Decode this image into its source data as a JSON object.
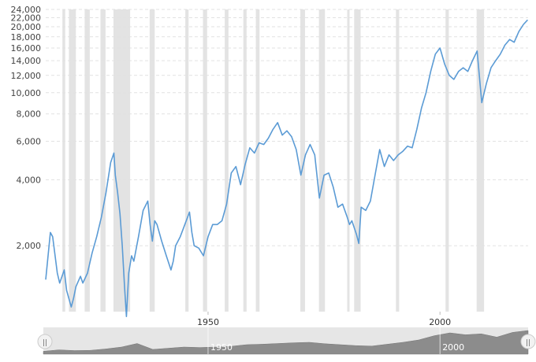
{
  "chart_data": {
    "type": "line",
    "y_scale": "log",
    "ylim": [
      1000,
      24000
    ],
    "xlim": [
      1915,
      2019
    ],
    "y_ticks": [
      {
        "value": 2000,
        "label": "2,000"
      },
      {
        "value": 4000,
        "label": "4,000"
      },
      {
        "value": 6000,
        "label": "6,000"
      },
      {
        "value": 8000,
        "label": "8,000"
      },
      {
        "value": 10000,
        "label": "10,000"
      },
      {
        "value": 12000,
        "label": "12,000"
      },
      {
        "value": 14000,
        "label": "14,000"
      },
      {
        "value": 16000,
        "label": "16,000"
      },
      {
        "value": 18000,
        "label": "18,000"
      },
      {
        "value": 20000,
        "label": "20,000"
      },
      {
        "value": 22000,
        "label": "22,000"
      },
      {
        "value": 24000,
        "label": "24,000"
      }
    ],
    "x_ticks": [
      {
        "value": 1950,
        "label": "1950"
      },
      {
        "value": 2000,
        "label": "2000"
      }
    ],
    "grid": true,
    "legend": "none",
    "line_color": "#5b9bd5",
    "recession_color": "#e3e3e3",
    "recessions": [
      [
        1918.6,
        1919.2
      ],
      [
        1920.0,
        1921.5
      ],
      [
        1923.4,
        1924.5
      ],
      [
        1926.8,
        1927.9
      ],
      [
        1929.6,
        1933.2
      ],
      [
        1937.4,
        1938.5
      ],
      [
        1945.1,
        1945.8
      ],
      [
        1948.9,
        1949.8
      ],
      [
        1953.6,
        1954.4
      ],
      [
        1957.6,
        1958.3
      ],
      [
        1960.3,
        1961.1
      ],
      [
        1969.9,
        1970.9
      ],
      [
        1973.9,
        1975.2
      ],
      [
        1980.0,
        1980.5
      ],
      [
        1981.5,
        1982.9
      ],
      [
        1990.5,
        1991.2
      ],
      [
        2001.2,
        2001.9
      ],
      [
        2007.9,
        2009.5
      ]
    ],
    "series": [
      {
        "x": [
          1915.0,
          1916.0,
          1916.5,
          1917.5,
          1918.0,
          1919.0,
          1919.5,
          1920.5,
          1921.0,
          1921.5,
          1922.5,
          1923.0,
          1924.0,
          1925.0,
          1926.0,
          1927.0,
          1928.0,
          1929.0,
          1929.7,
          1930.0,
          1930.5,
          1931.0,
          1931.5,
          1932.0,
          1932.4,
          1932.9,
          1933.5,
          1934.0,
          1935.0,
          1936.0,
          1937.0,
          1937.5,
          1938.0,
          1938.5,
          1939.0,
          1940.0,
          1941.0,
          1942.0,
          1942.5,
          1943.0,
          1944.0,
          1945.0,
          1946.0,
          1946.5,
          1947.0,
          1948.0,
          1949.0,
          1950.0,
          1951.0,
          1952.0,
          1953.0,
          1954.0,
          1955.0,
          1956.0,
          1957.0,
          1958.0,
          1959.0,
          1960.0,
          1961.0,
          1962.0,
          1963.0,
          1964.0,
          1965.0,
          1966.0,
          1967.0,
          1968.0,
          1969.0,
          1970.0,
          1971.0,
          1972.0,
          1973.0,
          1974.0,
          1975.0,
          1976.0,
          1977.0,
          1978.0,
          1979.0,
          1980.0,
          1980.5,
          1981.0,
          1982.0,
          1982.5,
          1983.0,
          1984.0,
          1985.0,
          1986.0,
          1987.0,
          1988.0,
          1989.0,
          1990.0,
          1991.0,
          1992.0,
          1993.0,
          1994.0,
          1995.0,
          1996.0,
          1997.0,
          1998.0,
          1999.0,
          2000.0,
          2001.0,
          2002.0,
          2003.0,
          2004.0,
          2005.0,
          2006.0,
          2007.0,
          2008.0,
          2009.0,
          2010.0,
          2011.0,
          2012.0,
          2013.0,
          2014.0,
          2015.0,
          2016.0,
          2017.0,
          2018.0,
          2018.9
        ],
        "values": [
          1400,
          2300,
          2200,
          1500,
          1350,
          1550,
          1250,
          1050,
          1150,
          1300,
          1450,
          1350,
          1500,
          1850,
          2200,
          2700,
          3500,
          4800,
          5300,
          4200,
          3500,
          2800,
          2000,
          1300,
          950,
          1500,
          1800,
          1700,
          2200,
          2900,
          3200,
          2500,
          2100,
          2600,
          2500,
          2100,
          1800,
          1550,
          1700,
          2000,
          2200,
          2500,
          2850,
          2300,
          2000,
          1950,
          1800,
          2200,
          2500,
          2500,
          2600,
          3100,
          4300,
          4600,
          3800,
          4700,
          5600,
          5300,
          5900,
          5800,
          6200,
          6800,
          7300,
          6400,
          6700,
          6300,
          5500,
          4200,
          5200,
          5800,
          5200,
          3300,
          4200,
          4300,
          3700,
          3000,
          3100,
          2700,
          2500,
          2600,
          2250,
          2050,
          3000,
          2900,
          3200,
          4200,
          5500,
          4600,
          5200,
          4900,
          5200,
          5400,
          5700,
          5600,
          6800,
          8500,
          10000,
          12500,
          15000,
          16000,
          13500,
          12000,
          11500,
          12500,
          13000,
          12500,
          14000,
          15500,
          9000,
          11000,
          13000,
          14000,
          15000,
          16500,
          17500,
          17000,
          19000,
          20500,
          21500
        ]
      }
    ]
  },
  "navigator": {
    "start_label": "||",
    "end_label": "||",
    "tick_labels": [
      "1950",
      "2000"
    ],
    "area_values": [
      0.12,
      0.18,
      0.15,
      0.16,
      0.22,
      0.3,
      0.45,
      0.2,
      0.25,
      0.3,
      0.28,
      0.3,
      0.33,
      0.4,
      0.42,
      0.45,
      0.48,
      0.5,
      0.44,
      0.4,
      0.36,
      0.34,
      0.42,
      0.5,
      0.6,
      0.78,
      0.9,
      0.82,
      0.86,
      0.72,
      0.92,
      1.0
    ]
  }
}
